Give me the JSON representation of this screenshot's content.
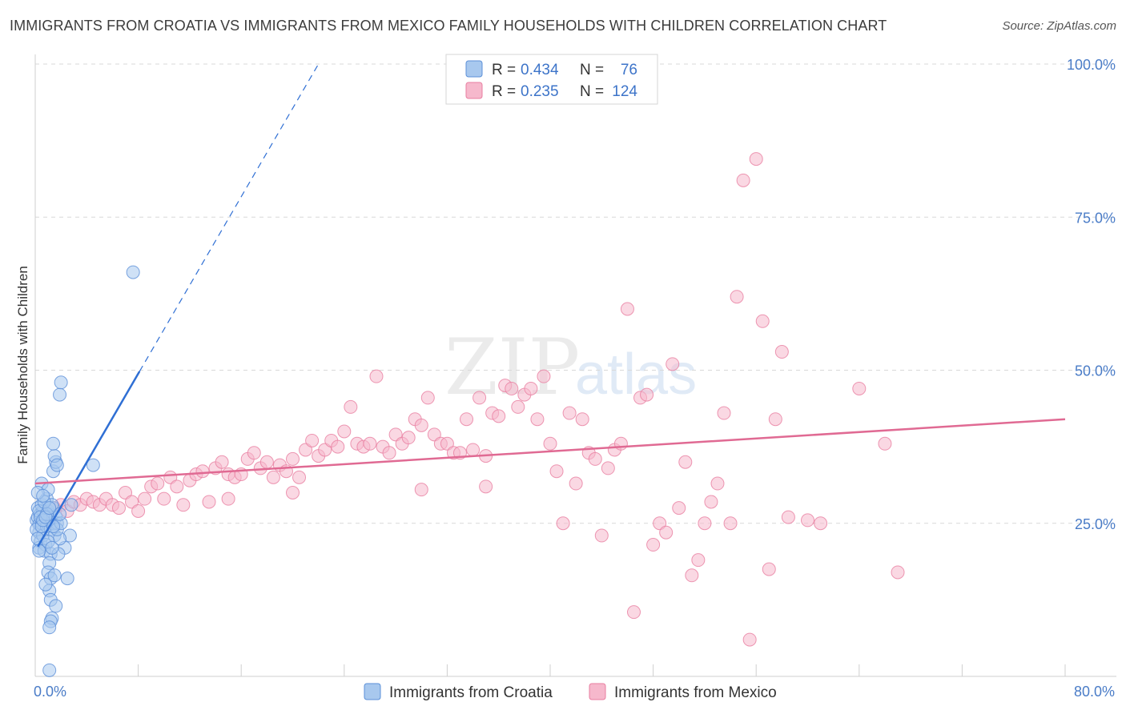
{
  "title": "IMMIGRANTS FROM CROATIA VS IMMIGRANTS FROM MEXICO FAMILY HOUSEHOLDS WITH CHILDREN CORRELATION CHART",
  "source": "Source: ZipAtlas.com",
  "watermark": {
    "zip": "ZIP",
    "atlas": "atlas"
  },
  "colors": {
    "croatia_fill": "#a8c8ee",
    "croatia_stroke": "#5b8fd8",
    "croatia_line": "#2f6fd4",
    "mexico_fill": "#f6b8cc",
    "mexico_stroke": "#e87ea0",
    "mexico_line": "#e06a93"
  },
  "legend": {
    "r_label": "R =",
    "n_label": "N =",
    "croatia": {
      "r": "0.434",
      "n": "76"
    },
    "mexico": {
      "r": "0.235",
      "n": "124"
    }
  },
  "bottom_legend": [
    "Immigrants from Croatia",
    "Immigrants from Mexico"
  ],
  "chart_data": {
    "type": "scatter",
    "title": "IMMIGRANTS FROM CROATIA VS IMMIGRANTS FROM MEXICO FAMILY HOUSEHOLDS WITH CHILDREN CORRELATION CHART",
    "xlabel": "",
    "ylabel": "Family Households with Children",
    "xlim": [
      0,
      80
    ],
    "ylim": [
      0,
      100
    ],
    "x_tick_labels": [
      "0.0%",
      "80.0%"
    ],
    "y_ticks": [
      25,
      50,
      75,
      100
    ],
    "y_tick_labels": [
      "25.0%",
      "50.0%",
      "75.0%",
      "100.0%"
    ],
    "series": [
      {
        "name": "Immigrants from Croatia",
        "R": 0.434,
        "N": 76,
        "trend": {
          "x0": 0.2,
          "y0": 21.2,
          "x1": 8.1,
          "y1": 49.8,
          "dash_to_x": 22.0,
          "dash_to_y": 100
        },
        "points": [
          [
            0.1,
            25.5
          ],
          [
            0.2,
            26.0
          ],
          [
            0.3,
            24.8
          ],
          [
            0.2,
            27.5
          ],
          [
            0.4,
            26.5
          ],
          [
            0.3,
            23.5
          ],
          [
            0.5,
            25.0
          ],
          [
            0.1,
            24.0
          ],
          [
            0.6,
            27.0
          ],
          [
            0.4,
            22.0
          ],
          [
            0.7,
            26.0
          ],
          [
            0.5,
            28.0
          ],
          [
            0.8,
            25.5
          ],
          [
            0.3,
            21.0
          ],
          [
            0.6,
            23.0
          ],
          [
            0.2,
            22.5
          ],
          [
            0.9,
            24.5
          ],
          [
            1.0,
            27.0
          ],
          [
            0.8,
            21.5
          ],
          [
            1.1,
            26.5
          ],
          [
            1.2,
            24.0
          ],
          [
            0.7,
            20.5
          ],
          [
            1.3,
            25.0
          ],
          [
            1.4,
            27.5
          ],
          [
            1.5,
            23.0
          ],
          [
            1.6,
            26.0
          ],
          [
            1.7,
            25.0
          ],
          [
            0.5,
            31.5
          ],
          [
            0.9,
            29.0
          ],
          [
            1.0,
            30.5
          ],
          [
            1.3,
            28.0
          ],
          [
            1.4,
            33.5
          ],
          [
            1.6,
            35.0
          ],
          [
            1.5,
            36.0
          ],
          [
            1.4,
            38.0
          ],
          [
            1.7,
            34.5
          ],
          [
            1.2,
            20.0
          ],
          [
            1.1,
            18.5
          ],
          [
            1.0,
            17.0
          ],
          [
            1.2,
            16.0
          ],
          [
            1.5,
            16.5
          ],
          [
            1.1,
            14.0
          ],
          [
            0.8,
            15.0
          ],
          [
            1.2,
            12.5
          ],
          [
            1.6,
            11.5
          ],
          [
            1.3,
            9.5
          ],
          [
            1.2,
            9.0
          ],
          [
            1.1,
            8.0
          ],
          [
            1.1,
            1.0
          ],
          [
            1.9,
            46.0
          ],
          [
            2.0,
            48.0
          ],
          [
            2.3,
            21.0
          ],
          [
            2.7,
            23.0
          ],
          [
            2.5,
            16.0
          ],
          [
            1.8,
            20.0
          ],
          [
            1.9,
            22.5
          ],
          [
            2.8,
            28.0
          ],
          [
            4.5,
            34.5
          ],
          [
            7.6,
            66.0
          ],
          [
            0.3,
            27.0
          ],
          [
            0.4,
            26.0
          ],
          [
            0.5,
            24.5
          ],
          [
            0.6,
            25.5
          ],
          [
            0.7,
            28.5
          ],
          [
            0.9,
            26.5
          ],
          [
            1.0,
            22.0
          ],
          [
            1.3,
            21.0
          ],
          [
            1.7,
            24.0
          ],
          [
            2.0,
            25.0
          ],
          [
            0.2,
            30.0
          ],
          [
            0.3,
            20.5
          ],
          [
            0.8,
            26.0
          ],
          [
            1.9,
            26.5
          ],
          [
            1.4,
            24.5
          ],
          [
            0.6,
            29.5
          ],
          [
            1.1,
            27.5
          ]
        ]
      },
      {
        "name": "Immigrants from Mexico",
        "R": 0.235,
        "N": 124,
        "trend": {
          "x0": 0.0,
          "y0": 31.5,
          "x1": 80.0,
          "y1": 42.0
        },
        "points": [
          [
            1.5,
            27.5
          ],
          [
            2.0,
            28.0
          ],
          [
            2.5,
            27.0
          ],
          [
            3.0,
            28.5
          ],
          [
            3.5,
            28.0
          ],
          [
            4.0,
            29.0
          ],
          [
            4.5,
            28.5
          ],
          [
            5.0,
            28.0
          ],
          [
            5.5,
            29.0
          ],
          [
            6.0,
            28.0
          ],
          [
            6.5,
            27.5
          ],
          [
            7.0,
            30.0
          ],
          [
            7.5,
            28.5
          ],
          [
            8.0,
            27.0
          ],
          [
            8.5,
            29.0
          ],
          [
            9.0,
            31.0
          ],
          [
            9.5,
            31.5
          ],
          [
            10.0,
            29.0
          ],
          [
            10.5,
            32.5
          ],
          [
            11.0,
            31.0
          ],
          [
            11.5,
            28.0
          ],
          [
            12.0,
            32.0
          ],
          [
            12.5,
            33.0
          ],
          [
            13.0,
            33.5
          ],
          [
            13.5,
            28.5
          ],
          [
            14.0,
            34.0
          ],
          [
            14.5,
            35.0
          ],
          [
            15.0,
            33.0
          ],
          [
            15.5,
            32.5
          ],
          [
            16.0,
            33.0
          ],
          [
            16.5,
            35.5
          ],
          [
            17.0,
            36.5
          ],
          [
            17.5,
            34.0
          ],
          [
            18.0,
            35.0
          ],
          [
            18.5,
            32.5
          ],
          [
            19.0,
            34.5
          ],
          [
            19.5,
            33.5
          ],
          [
            20.0,
            35.5
          ],
          [
            20.5,
            32.5
          ],
          [
            21.0,
            37.0
          ],
          [
            21.5,
            38.5
          ],
          [
            22.0,
            36.0
          ],
          [
            22.5,
            37.0
          ],
          [
            23.0,
            38.5
          ],
          [
            23.5,
            37.5
          ],
          [
            24.0,
            40.0
          ],
          [
            24.5,
            44.0
          ],
          [
            25.0,
            38.0
          ],
          [
            25.5,
            37.5
          ],
          [
            26.0,
            38.0
          ],
          [
            26.5,
            49.0
          ],
          [
            27.0,
            37.5
          ],
          [
            27.5,
            36.5
          ],
          [
            28.0,
            39.5
          ],
          [
            28.5,
            38.0
          ],
          [
            29.0,
            39.0
          ],
          [
            29.5,
            42.0
          ],
          [
            30.0,
            41.0
          ],
          [
            30.5,
            45.5
          ],
          [
            31.0,
            39.5
          ],
          [
            31.5,
            38.0
          ],
          [
            32.0,
            38.0
          ],
          [
            32.5,
            36.5
          ],
          [
            33.0,
            36.5
          ],
          [
            33.5,
            42.0
          ],
          [
            34.0,
            37.0
          ],
          [
            34.5,
            45.5
          ],
          [
            35.0,
            36.0
          ],
          [
            35.5,
            43.0
          ],
          [
            36.0,
            42.5
          ],
          [
            36.5,
            47.5
          ],
          [
            37.0,
            47.0
          ],
          [
            37.5,
            44.0
          ],
          [
            38.0,
            46.0
          ],
          [
            38.5,
            47.0
          ],
          [
            39.0,
            42.0
          ],
          [
            39.5,
            49.0
          ],
          [
            40.0,
            38.0
          ],
          [
            40.5,
            33.5
          ],
          [
            41.0,
            25.0
          ],
          [
            41.5,
            43.0
          ],
          [
            42.0,
            31.5
          ],
          [
            42.5,
            42.0
          ],
          [
            43.0,
            36.5
          ],
          [
            43.5,
            35.5
          ],
          [
            44.0,
            23.0
          ],
          [
            44.5,
            34.0
          ],
          [
            45.0,
            37.0
          ],
          [
            45.5,
            38.0
          ],
          [
            46.0,
            60.0
          ],
          [
            46.5,
            10.5
          ],
          [
            47.0,
            45.5
          ],
          [
            47.5,
            46.0
          ],
          [
            48.0,
            21.5
          ],
          [
            48.5,
            25.0
          ],
          [
            49.0,
            23.5
          ],
          [
            49.5,
            51.0
          ],
          [
            50.0,
            27.5
          ],
          [
            50.5,
            35.0
          ],
          [
            51.0,
            16.5
          ],
          [
            51.5,
            19.0
          ],
          [
            52.0,
            25.0
          ],
          [
            52.5,
            28.5
          ],
          [
            53.0,
            31.5
          ],
          [
            53.5,
            43.0
          ],
          [
            54.0,
            25.0
          ],
          [
            54.5,
            62.0
          ],
          [
            55.0,
            81.0
          ],
          [
            55.5,
            6.0
          ],
          [
            56.0,
            84.5
          ],
          [
            56.5,
            58.0
          ],
          [
            57.0,
            17.5
          ],
          [
            57.5,
            42.0
          ],
          [
            58.0,
            53.0
          ],
          [
            58.5,
            26.0
          ],
          [
            60.0,
            25.5
          ],
          [
            61.0,
            25.0
          ],
          [
            64.0,
            47.0
          ],
          [
            66.0,
            38.0
          ],
          [
            67.0,
            17.0
          ],
          [
            30.0,
            30.5
          ],
          [
            35.0,
            31.0
          ],
          [
            20.0,
            30.0
          ],
          [
            15.0,
            29.0
          ]
        ]
      }
    ]
  }
}
